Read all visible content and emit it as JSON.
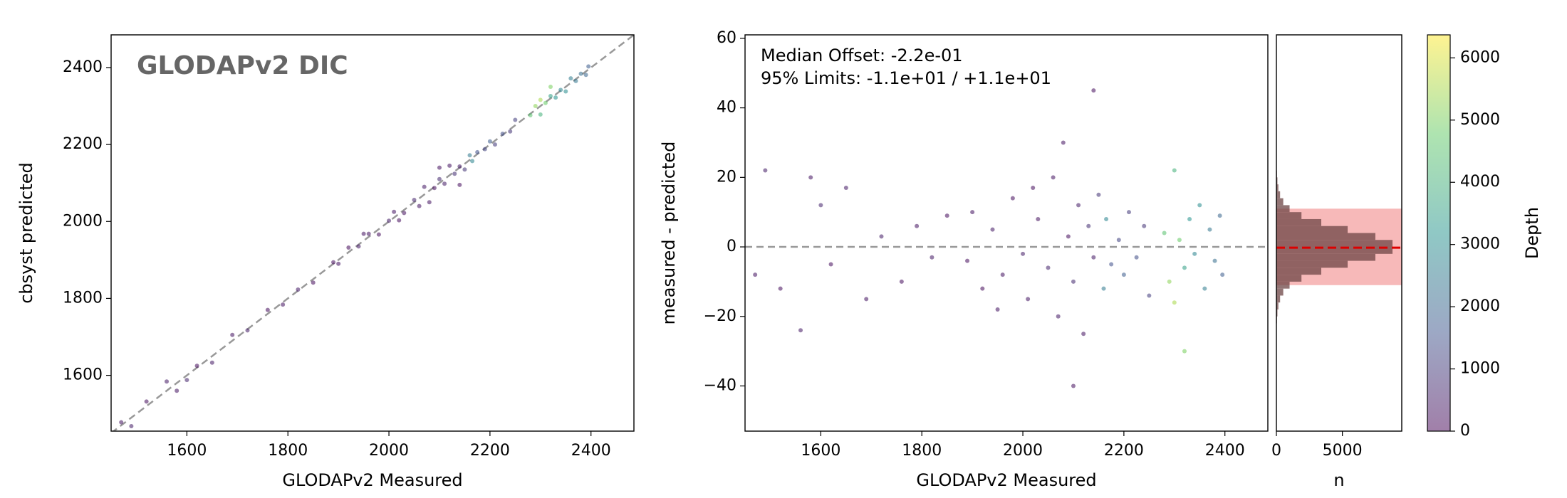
{
  "chart_data": [
    {
      "type": "scatter",
      "title": "GLODAPv2 DIC",
      "x_label": "GLODAPv2 Measured",
      "y_label": "cbsyst predicted",
      "x": [
        1470,
        1490,
        1520,
        1560,
        1580,
        1600,
        1620,
        1650,
        1690,
        1720,
        1760,
        1790,
        1820,
        1850,
        1890,
        1900,
        1920,
        1940,
        1950,
        1960,
        1980,
        2000,
        2010,
        2020,
        2030,
        2050,
        2060,
        2070,
        2080,
        2090,
        2100,
        2100,
        2110,
        2120,
        2130,
        2140,
        2140,
        2150,
        2160,
        2165,
        2175,
        2190,
        2200,
        2210,
        2225,
        2240,
        2250,
        2280,
        2290,
        2300,
        2300,
        2310,
        2320,
        2320,
        2330,
        2340,
        2350,
        2360,
        2370,
        2380,
        2390,
        2395
      ],
      "y": [
        1478,
        1468,
        1532,
        1584,
        1560,
        1588,
        1625,
        1633,
        1705,
        1717,
        1770,
        1784,
        1823,
        1841,
        1894,
        1890,
        1932,
        1935,
        1968,
        1968,
        1966,
        2002,
        2025,
        2003,
        2022,
        2056,
        2040,
        2090,
        2050,
        2087,
        2110,
        2140,
        2098,
        2145,
        2124,
        2143,
        2095,
        2135,
        2172,
        2157,
        2180,
        2188,
        2208,
        2200,
        2228,
        2234,
        2264,
        2276,
        2300,
        2316,
        2278,
        2308,
        2326,
        2350,
        2322,
        2342,
        2338,
        2372,
        2365,
        2384,
        2381,
        2403
      ],
      "color_values": [
        300,
        500,
        200,
        400,
        300,
        600,
        200,
        400,
        300,
        500,
        200,
        300,
        400,
        200,
        200,
        300,
        150,
        400,
        300,
        300,
        200,
        500,
        350,
        200,
        250,
        600,
        300,
        400,
        300,
        200,
        700,
        250,
        500,
        300,
        800,
        400,
        200,
        900,
        2500,
        2800,
        1500,
        1200,
        1800,
        1000,
        1400,
        900,
        1100,
        4500,
        5200,
        5500,
        4000,
        4800,
        3500,
        5000,
        3200,
        2800,
        3000,
        2600,
        2400,
        2200,
        2000,
        1800
      ],
      "xlim": [
        1450,
        2485
      ],
      "ylim": [
        1455,
        2485
      ],
      "xticks": [
        1600,
        1800,
        2000,
        2200,
        2400
      ],
      "yticks": [
        1600,
        1800,
        2000,
        2200,
        2400
      ],
      "identity_line": true
    },
    {
      "type": "scatter",
      "x_label": "GLODAPv2 Measured",
      "y_label": "measured - predicted",
      "annotations": [
        "Median Offset: -2.2e-01",
        "95% Limits: -1.1e+01 / +1.1e+01"
      ],
      "x": [
        1470,
        1490,
        1520,
        1560,
        1580,
        1600,
        1620,
        1650,
        1690,
        1720,
        1760,
        1790,
        1820,
        1850,
        1890,
        1900,
        1920,
        1940,
        1950,
        1960,
        1980,
        2000,
        2010,
        2020,
        2030,
        2050,
        2060,
        2070,
        2080,
        2090,
        2100,
        2100,
        2110,
        2120,
        2130,
        2140,
        2140,
        2150,
        2160,
        2165,
        2175,
        2190,
        2200,
        2210,
        2225,
        2240,
        2250,
        2280,
        2290,
        2300,
        2300,
        2310,
        2320,
        2320,
        2330,
        2340,
        2350,
        2360,
        2370,
        2380,
        2390,
        2395
      ],
      "y": [
        -8,
        22,
        -12,
        -24,
        20,
        12,
        -5,
        17,
        -15,
        3,
        -10,
        6,
        -3,
        9,
        -4,
        10,
        -12,
        5,
        -18,
        -8,
        14,
        -2,
        -15,
        17,
        8,
        -6,
        20,
        -20,
        30,
        3,
        -10,
        -40,
        12,
        -25,
        6,
        -3,
        45,
        15,
        -12,
        8,
        -5,
        2,
        -8,
        10,
        -3,
        6,
        -14,
        4,
        -10,
        -16,
        22,
        2,
        -6,
        -30,
        8,
        -2,
        12,
        -12,
        5,
        -4,
        9,
        -8
      ],
      "color_values": [
        300,
        500,
        200,
        400,
        300,
        600,
        200,
        400,
        300,
        500,
        200,
        300,
        400,
        200,
        200,
        300,
        150,
        400,
        300,
        300,
        200,
        500,
        350,
        200,
        250,
        600,
        300,
        400,
        300,
        200,
        700,
        250,
        500,
        300,
        800,
        400,
        200,
        900,
        2500,
        2800,
        1500,
        1200,
        1800,
        1000,
        1400,
        900,
        1100,
        4500,
        5200,
        5500,
        4000,
        4800,
        3500,
        5000,
        3200,
        2800,
        3000,
        2600,
        2400,
        2200,
        2000,
        1800
      ],
      "xlim": [
        1450,
        2485
      ],
      "ylim": [
        -53,
        61
      ],
      "xticks": [
        1600,
        1800,
        2000,
        2200,
        2400
      ],
      "yticks": [
        {
          "value": -40,
          "label": "−40"
        },
        {
          "value": -20,
          "label": "−20"
        },
        0,
        20,
        40,
        60
      ],
      "hline": 0
    },
    {
      "type": "histogram",
      "orientation": "horizontal",
      "x_label": "n",
      "color": "#6e4646",
      "bins": [
        -30,
        -28,
        -26,
        -24,
        -22,
        -20,
        -18,
        -16,
        -14,
        -12,
        -10,
        -8,
        -6,
        -4,
        -2,
        0,
        2,
        4,
        6,
        8,
        10,
        12,
        14,
        16,
        18,
        20,
        22,
        24,
        26,
        28,
        30
      ],
      "values": [
        3,
        5,
        10,
        20,
        40,
        80,
        150,
        280,
        520,
        1000,
        1900,
        3400,
        5400,
        7500,
        8800,
        8800,
        7500,
        5400,
        3400,
        1900,
        1000,
        520,
        280,
        150,
        80,
        40,
        20,
        10,
        5,
        3
      ],
      "xlim": [
        0,
        9500
      ],
      "ylim": [
        -53,
        61
      ],
      "xticks": [
        0,
        5000
      ],
      "median": -0.22,
      "limits": [
        -11,
        11
      ],
      "median_color": "#dd0000",
      "band_color": "#f08080"
    },
    {
      "type": "colorbar",
      "label": "Depth",
      "colormap": "viridis",
      "lim": [
        0,
        6370
      ],
      "ticks": [
        0,
        1000,
        2000,
        3000,
        4000,
        5000,
        6000
      ]
    }
  ]
}
